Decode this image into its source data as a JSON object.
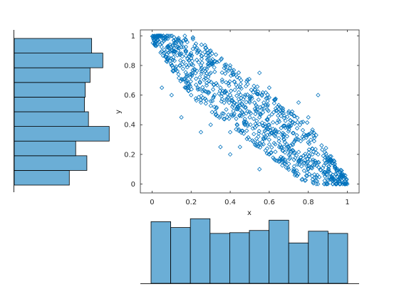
{
  "figure": {
    "background": "#ffffff",
    "marker_color": "#0072bd",
    "bar_fill": "#6baed6",
    "bar_edge": "#000000"
  },
  "chart_data": [
    {
      "type": "scatter",
      "marker": "diamond-open",
      "xlabel": "x",
      "ylabel": "y",
      "xlim": [
        -0.06,
        1.06
      ],
      "ylim": [
        -0.06,
        1.04
      ],
      "xticks": [
        0,
        0.2,
        0.4,
        0.6,
        0.8,
        1
      ],
      "yticks": [
        0,
        0.2,
        0.4,
        0.6,
        0.8,
        1
      ],
      "xtick_labels": [
        "0",
        "0.2",
        "0.4",
        "0.6",
        "0.8",
        "1"
      ],
      "ytick_labels": [
        "0",
        "0.2",
        "0.4",
        "0.6",
        "0.8",
        "1"
      ],
      "grid": false,
      "box": true,
      "n_points_approx": 1000,
      "relationship": "negative correlation, y ≈ 1 − x with spread",
      "sample_points": [
        [
          0.01,
          0.99
        ],
        [
          0.03,
          0.97
        ],
        [
          0.05,
          0.95
        ],
        [
          0.06,
          0.98
        ],
        [
          0.08,
          0.93
        ],
        [
          0.1,
          0.9
        ],
        [
          0.12,
          0.95
        ],
        [
          0.15,
          0.88
        ],
        [
          0.1,
          0.8
        ],
        [
          0.2,
          0.85
        ],
        [
          0.25,
          0.8
        ],
        [
          0.3,
          0.75
        ],
        [
          0.05,
          0.65
        ],
        [
          0.1,
          0.6
        ],
        [
          0.2,
          0.6
        ],
        [
          0.25,
          0.55
        ],
        [
          0.35,
          0.65
        ],
        [
          0.4,
          0.6
        ],
        [
          0.45,
          0.5
        ],
        [
          0.5,
          0.55
        ],
        [
          0.3,
          0.4
        ],
        [
          0.4,
          0.35
        ],
        [
          0.5,
          0.3
        ],
        [
          0.55,
          0.45
        ],
        [
          0.6,
          0.4
        ],
        [
          0.65,
          0.35
        ],
        [
          0.7,
          0.4
        ],
        [
          0.75,
          0.3
        ],
        [
          0.8,
          0.45
        ],
        [
          0.85,
          0.6
        ],
        [
          0.6,
          0.2
        ],
        [
          0.65,
          0.15
        ],
        [
          0.7,
          0.25
        ],
        [
          0.75,
          0.15
        ],
        [
          0.8,
          0.1
        ],
        [
          0.85,
          0.2
        ],
        [
          0.9,
          0.15
        ],
        [
          0.95,
          0.1
        ],
        [
          0.92,
          0.05
        ],
        [
          0.96,
          0.02
        ],
        [
          0.98,
          0.01
        ],
        [
          0.99,
          0.04
        ],
        [
          0.88,
          0.08
        ],
        [
          0.45,
          0.25
        ],
        [
          0.5,
          0.45
        ],
        [
          0.15,
          0.45
        ],
        [
          0.25,
          0.35
        ],
        [
          0.35,
          0.25
        ],
        [
          0.4,
          0.2
        ],
        [
          0.55,
          0.1
        ],
        [
          0.3,
          0.9
        ],
        [
          0.4,
          0.8
        ],
        [
          0.55,
          0.75
        ],
        [
          0.6,
          0.65
        ],
        [
          0.75,
          0.55
        ]
      ]
    },
    {
      "type": "bar",
      "role": "histogram of x (below scatter)",
      "bins": 10,
      "bin_edges": [
        0,
        0.1,
        0.2,
        0.3,
        0.4,
        0.5,
        0.6,
        0.7,
        0.8,
        0.9,
        1.0
      ],
      "values": [
        84,
        76,
        88,
        68,
        69,
        72,
        86,
        55,
        71,
        68
      ],
      "ylim": [
        0,
        95
      ],
      "axes_visible": false
    },
    {
      "type": "bar",
      "orientation": "horizontal",
      "role": "histogram of y (left of scatter)",
      "bins": 10,
      "bin_edges": [
        0,
        0.1,
        0.2,
        0.3,
        0.4,
        0.5,
        0.6,
        0.7,
        0.8,
        0.9,
        1.0
      ],
      "values": [
        69,
        91,
        77,
        119,
        93,
        88,
        89,
        95,
        111,
        97
      ],
      "xlim": [
        0,
        125
      ],
      "axes_visible": false
    }
  ]
}
